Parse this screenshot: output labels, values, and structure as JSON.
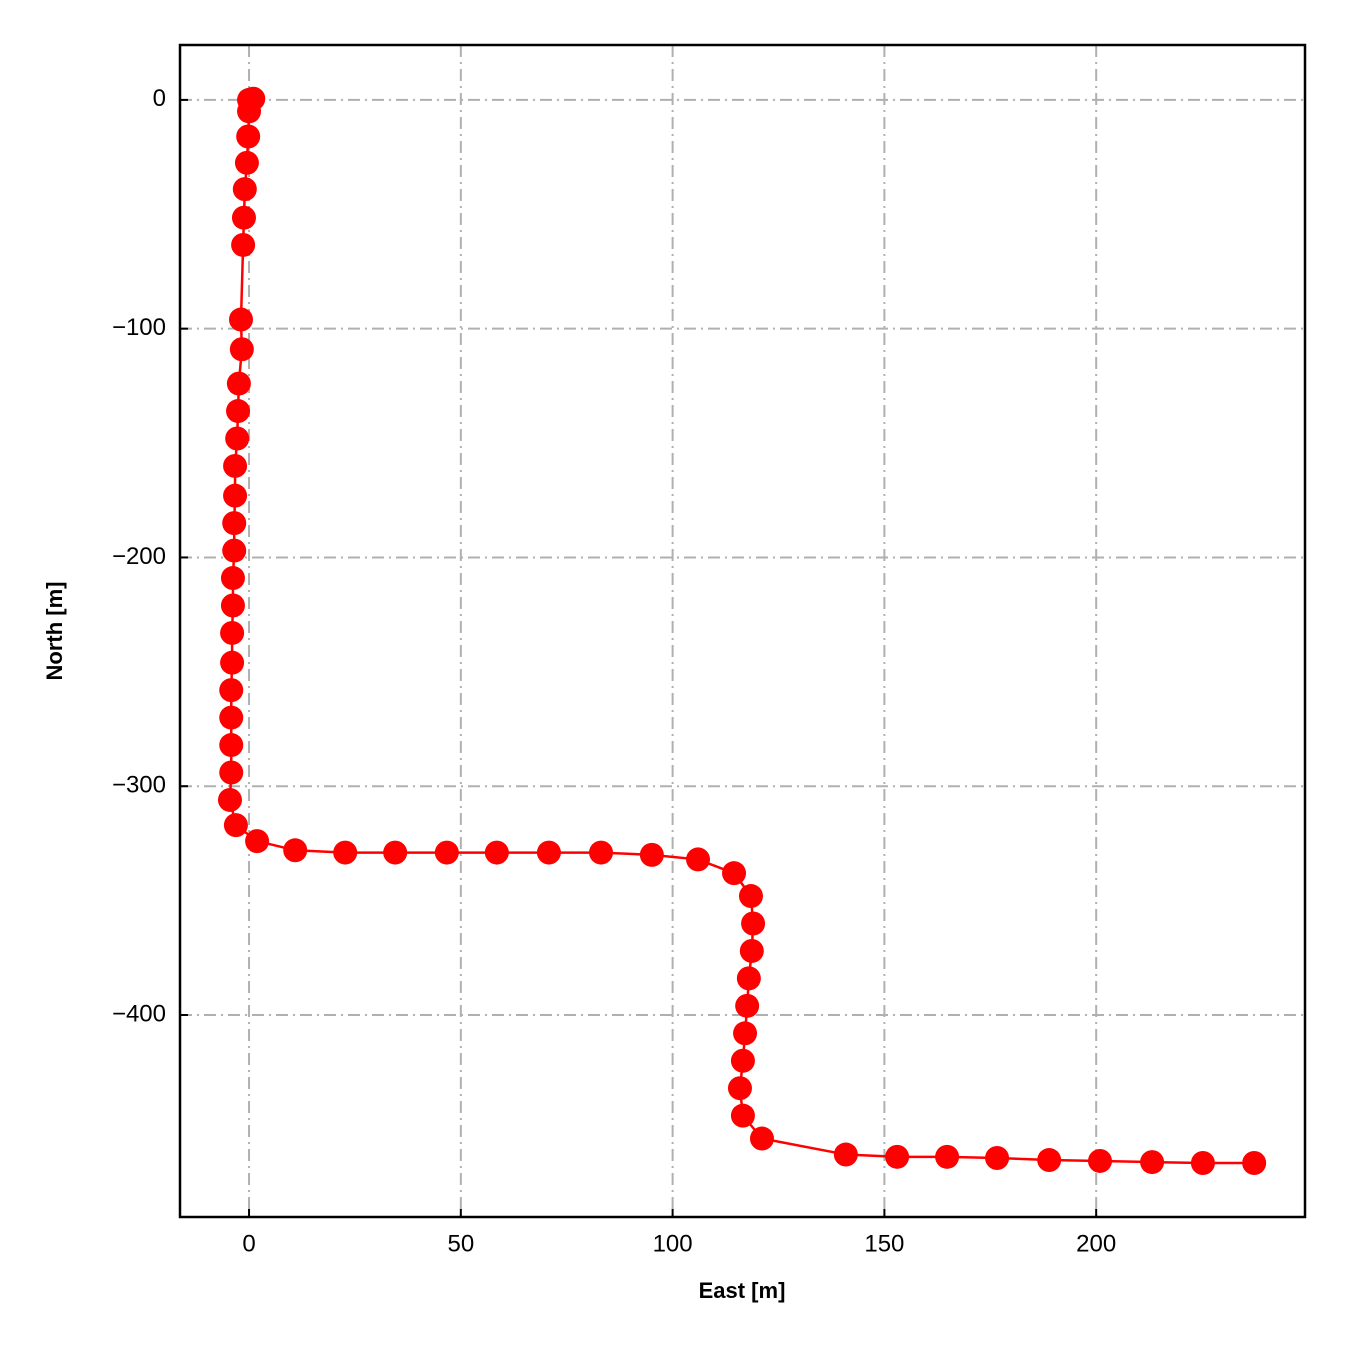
{
  "chart_data": {
    "type": "line",
    "xlabel": "East [m]",
    "ylabel": "North [m]",
    "x": [
      0,
      1,
      0,
      -0.2,
      -0.5,
      -1,
      -1.2,
      -1.4,
      -1.9,
      -1.7,
      -2.4,
      -2.6,
      -2.8,
      -3.3,
      -3.3,
      -3.5,
      -3.5,
      -3.8,
      -3.8,
      -4,
      -4,
      -4.2,
      -4.2,
      -4.2,
      -4.2,
      -4.5,
      -3.1,
      1.9,
      10.9,
      22.7,
      34.5,
      46.7,
      58.5,
      70.8,
      83.1,
      95.1,
      106,
      114.5,
      118.5,
      119,
      118.7,
      118,
      117.6,
      117.1,
      116.6,
      115.9,
      116.6,
      121.1,
      140.9,
      153,
      164.8,
      176.6,
      188.9,
      200.9,
      213.2,
      225.2,
      237.3
    ],
    "values": [
      0,
      0.5,
      -5,
      -16,
      -27.5,
      -39,
      -51.5,
      -63.4,
      -96,
      -109,
      -124,
      -136,
      -148,
      -160,
      -173,
      -185,
      -197,
      -209,
      -221,
      -233,
      -246,
      -258,
      -270,
      -282,
      -294,
      -306,
      -317,
      -324,
      -328,
      -329,
      -329,
      -329,
      -329,
      -329,
      -329,
      -330,
      -332,
      -338,
      -348,
      -360,
      -372,
      -384,
      -396,
      -408,
      -420,
      -432,
      -444,
      -454,
      -461,
      -462,
      -462,
      -462.5,
      -463.4,
      -463.8,
      -464.3,
      -464.7,
      -464.7
    ],
    "color": "#ff0000",
    "marker": "o",
    "xlim": [
      -16.3,
      249.3
    ],
    "ylim": [
      -488.3,
      24
    ],
    "xticks": [
      0,
      50,
      100,
      150,
      200
    ],
    "yticks": [
      0,
      {
        "value": -100,
        "label": "−100"
      },
      {
        "value": -200,
        "label": "−200"
      },
      {
        "value": -300,
        "label": "−300"
      },
      {
        "value": -400,
        "label": "−400"
      }
    ],
    "grid": true
  }
}
